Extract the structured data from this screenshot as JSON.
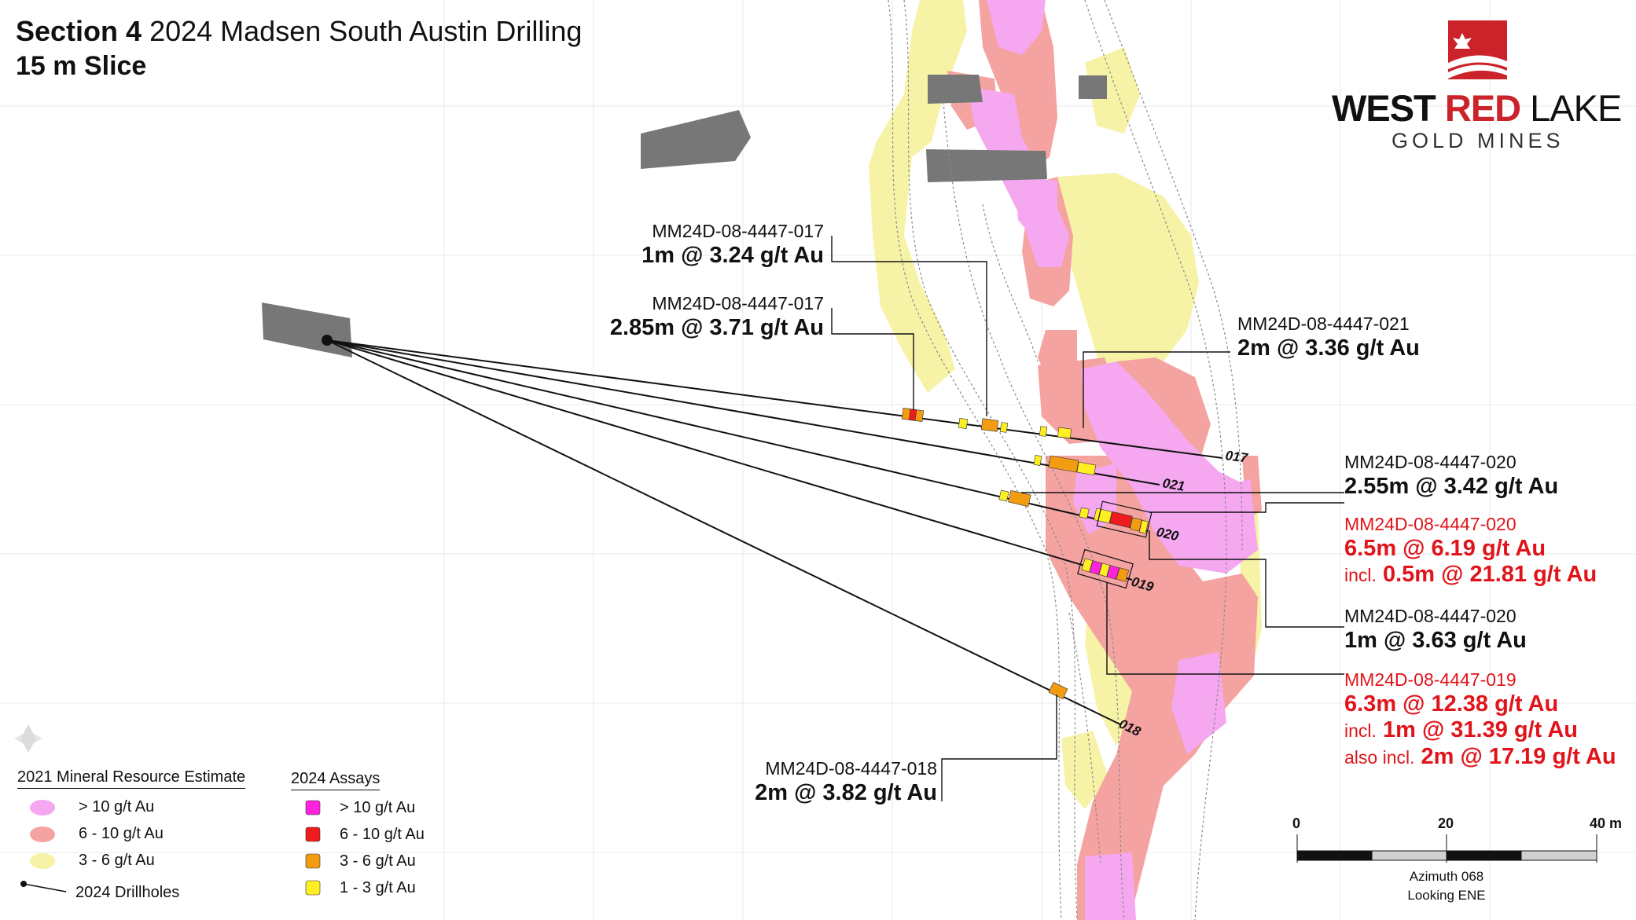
{
  "title": {
    "section": "Section 4",
    "rest": "2024 Madsen South Austin Drilling",
    "slice": "15 m Slice"
  },
  "logo": {
    "word_west": "WEST",
    "word_red": "RED",
    "word_lake": "LAKE",
    "subtitle": "GOLD MINES"
  },
  "hole_labels": {
    "h017": "017",
    "h021": "021",
    "h020": "020",
    "h019": "019",
    "h018": "018"
  },
  "intercepts": {
    "a": {
      "hole": "MM24D-08-4447-017",
      "value": "1m @ 3.24 g/t Au"
    },
    "b": {
      "hole": "MM24D-08-4447-017",
      "value": "2.85m @ 3.71 g/t Au"
    },
    "c": {
      "hole": "MM24D-08-4447-021",
      "value": "2m @ 3.36 g/t Au"
    },
    "d": {
      "hole": "MM24D-08-4447-020",
      "value": "2.55m @ 3.42 g/t Au"
    },
    "e": {
      "hole": "MM24D-08-4447-020",
      "value": "6.5m @ 6.19 g/t Au",
      "incl_prefix": "incl.",
      "incl_value": "0.5m @ 21.81 g/t Au"
    },
    "f": {
      "hole": "MM24D-08-4447-020",
      "value": "1m @ 3.63 g/t Au"
    },
    "g": {
      "hole": "MM24D-08-4447-019",
      "value": "6.3m @ 12.38 g/t Au",
      "incl_prefix": "incl.",
      "incl_value": "1m @ 31.39 g/t Au",
      "also_prefix": "also incl.",
      "also_value": "2m @ 17.19 g/t Au"
    },
    "h": {
      "hole": "MM24D-08-4447-018",
      "value": "2m @ 3.82 g/t Au"
    }
  },
  "legend": {
    "resource_title": "2021 Mineral Resource Estimate",
    "resource_items": [
      {
        "label": "> 10 g/t Au",
        "color": "#f5a8f0"
      },
      {
        "label": "6 - 10 g/t Au",
        "color": "#f4a3a0"
      },
      {
        "label": "3 - 6 g/t Au",
        "color": "#f7f3a6"
      }
    ],
    "drill_label": "2024 Drillholes",
    "assay_title": "2024 Assays",
    "assay_items": [
      {
        "label": "> 10 g/t Au",
        "color": "#ff22dd"
      },
      {
        "label": "6 - 10 g/t Au",
        "color": "#ee1c1c"
      },
      {
        "label": "3 - 6 g/t Au",
        "color": "#f39c12"
      },
      {
        "label": "1 - 3 g/t Au",
        "color": "#ffee22"
      }
    ]
  },
  "scale": {
    "tick0": "0",
    "tick1": "20",
    "tick2": "40 m",
    "azimuth": "Azimuth 068",
    "looking": "Looking ENE"
  }
}
